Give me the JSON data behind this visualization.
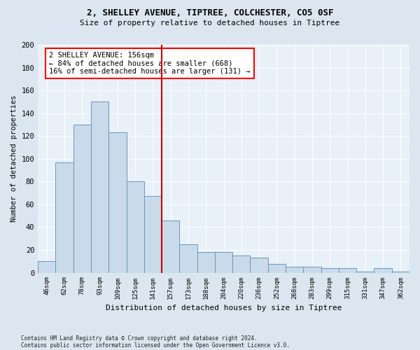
{
  "title1": "2, SHELLEY AVENUE, TIPTREE, COLCHESTER, CO5 0SF",
  "title2": "Size of property relative to detached houses in Tiptree",
  "xlabel": "Distribution of detached houses by size in Tiptree",
  "ylabel": "Number of detached properties",
  "categories": [
    "46sqm",
    "62sqm",
    "78sqm",
    "93sqm",
    "109sqm",
    "125sqm",
    "141sqm",
    "157sqm",
    "173sqm",
    "188sqm",
    "204sqm",
    "220sqm",
    "236sqm",
    "252sqm",
    "268sqm",
    "283sqm",
    "299sqm",
    "315sqm",
    "331sqm",
    "347sqm",
    "362sqm"
  ],
  "values": [
    10,
    97,
    130,
    150,
    123,
    80,
    67,
    46,
    25,
    18,
    18,
    15,
    13,
    8,
    5,
    5,
    4,
    4,
    1,
    4,
    1
  ],
  "bar_color": "#c9daea",
  "bar_edge_color": "#6699bb",
  "annotation_text": "2 SHELLEY AVENUE: 156sqm\n← 84% of detached houses are smaller (668)\n16% of semi-detached houses are larger (131) →",
  "vline_color": "#cc0000",
  "vline_index": 7,
  "footnote1": "Contains HM Land Registry data © Crown copyright and database right 2024.",
  "footnote2": "Contains public sector information licensed under the Open Government Licence v3.0.",
  "ylim": [
    0,
    200
  ],
  "yticks": [
    0,
    20,
    40,
    60,
    80,
    100,
    120,
    140,
    160,
    180,
    200
  ],
  "bg_color": "#dce6f0",
  "plot_bg_color": "#e8f0f8"
}
